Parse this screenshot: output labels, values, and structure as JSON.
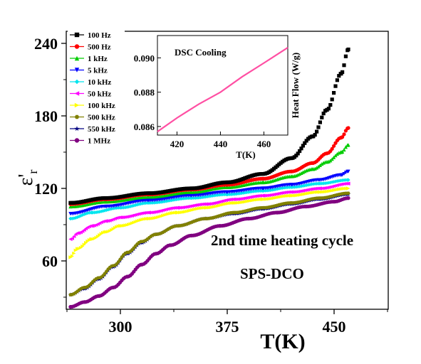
{
  "chart_data": [
    {
      "type": "scatter",
      "xlabel": "T(K)",
      "ylabel": "ε'",
      "ylabel_sub": "r",
      "xlim": [
        262,
        488
      ],
      "ylim": [
        20,
        250
      ],
      "xticks": [
        300,
        375,
        450
      ],
      "yticks": [
        60,
        120,
        180,
        240
      ],
      "annotations": [
        "2nd time heating cycle",
        "SPS-DCO"
      ],
      "legend_position": "top-left",
      "series": [
        {
          "name": "100 Hz",
          "color": "#000000",
          "marker": "square",
          "x": [
            265,
            290,
            320,
            350,
            375,
            400,
            420,
            435,
            445,
            455,
            460
          ],
          "y": [
            108,
            112,
            116,
            120,
            125,
            132,
            145,
            163,
            185,
            215,
            235
          ]
        },
        {
          "name": "500 Hz",
          "color": "#ff0000",
          "marker": "circle",
          "x": [
            265,
            290,
            320,
            350,
            375,
            400,
            420,
            435,
            445,
            455,
            460
          ],
          "y": [
            107,
            111,
            115,
            119,
            123,
            128,
            134,
            141,
            149,
            162,
            170
          ]
        },
        {
          "name": "1 kHz",
          "color": "#00cc00",
          "marker": "triangle-up",
          "x": [
            265,
            290,
            320,
            350,
            375,
            400,
            420,
            435,
            445,
            455,
            460
          ],
          "y": [
            105,
            109,
            113,
            117,
            121,
            125,
            130,
            136,
            142,
            150,
            156
          ]
        },
        {
          "name": "5 kHz",
          "color": "#0000ff",
          "marker": "triangle-down",
          "x": [
            265,
            290,
            320,
            350,
            375,
            400,
            420,
            440,
            455,
            460
          ],
          "y": [
            99,
            105,
            110,
            114,
            117,
            120,
            123,
            127,
            131,
            134
          ]
        },
        {
          "name": "10 kHz",
          "color": "#00e5ee",
          "marker": "diamond",
          "x": [
            265,
            280,
            300,
            320,
            350,
            375,
            400,
            420,
            440,
            460
          ],
          "y": [
            95,
            100,
            104,
            108,
            112,
            115,
            118,
            121,
            124,
            127
          ]
        },
        {
          "name": "50 kHz",
          "color": "#ff00ff",
          "marker": "triangle-left",
          "x": [
            265,
            270,
            280,
            290,
            300,
            320,
            340,
            360,
            380,
            400,
            420,
            440,
            460
          ],
          "y": [
            78,
            83,
            89,
            93,
            96,
            100,
            104,
            107,
            111,
            114,
            117,
            120,
            124
          ]
        },
        {
          "name": "100 kHz",
          "color": "#ffff00",
          "marker": "triangle-right",
          "x": [
            265,
            270,
            280,
            290,
            300,
            320,
            340,
            360,
            380,
            400,
            420,
            440,
            460
          ],
          "y": [
            63,
            70,
            78,
            84,
            89,
            95,
            100,
            104,
            108,
            111,
            114,
            117,
            120
          ]
        },
        {
          "name": "500 kHz",
          "color": "#808000",
          "marker": "hexagon",
          "x": [
            265,
            275,
            285,
            295,
            305,
            315,
            325,
            340,
            360,
            380,
            400,
            420,
            440,
            460
          ],
          "y": [
            32,
            38,
            46,
            56,
            67,
            76,
            82,
            89,
            95,
            100,
            104,
            108,
            112,
            116
          ]
        },
        {
          "name": "550 kHz",
          "color": "#000080",
          "marker": "star",
          "x": [
            265,
            275,
            285,
            295,
            305,
            315,
            325,
            340,
            360,
            380,
            400,
            420,
            440,
            460
          ],
          "y": [
            32,
            37,
            45,
            55,
            66,
            75,
            82,
            89,
            95,
            99,
            103,
            107,
            111,
            115
          ]
        },
        {
          "name": "1 MHz",
          "color": "#800080",
          "marker": "circle",
          "x": [
            265,
            275,
            285,
            295,
            305,
            315,
            325,
            335,
            350,
            370,
            390,
            410,
            430,
            450,
            460
          ],
          "y": [
            22,
            26,
            31,
            38,
            47,
            57,
            66,
            73,
            81,
            89,
            95,
            100,
            105,
            109,
            112
          ]
        }
      ]
    },
    {
      "type": "line",
      "title": "DSC Cooling",
      "xlabel": "T(K)",
      "ylabel": "Heat Flow (W/g)",
      "xlim": [
        411,
        471
      ],
      "ylim": [
        0.0855,
        0.0913
      ],
      "xticks": [
        420,
        440,
        460
      ],
      "yticks": [
        0.086,
        0.088,
        0.09
      ],
      "ytick_labels": [
        "0.086",
        "0.088",
        "0.090"
      ],
      "series": [
        {
          "color": "#ff4fa3",
          "x": [
            411,
            420,
            430,
            440,
            450,
            460,
            471
          ],
          "y": [
            0.0857,
            0.0865,
            0.0873,
            0.088,
            0.0889,
            0.0897,
            0.0906
          ]
        }
      ]
    }
  ]
}
